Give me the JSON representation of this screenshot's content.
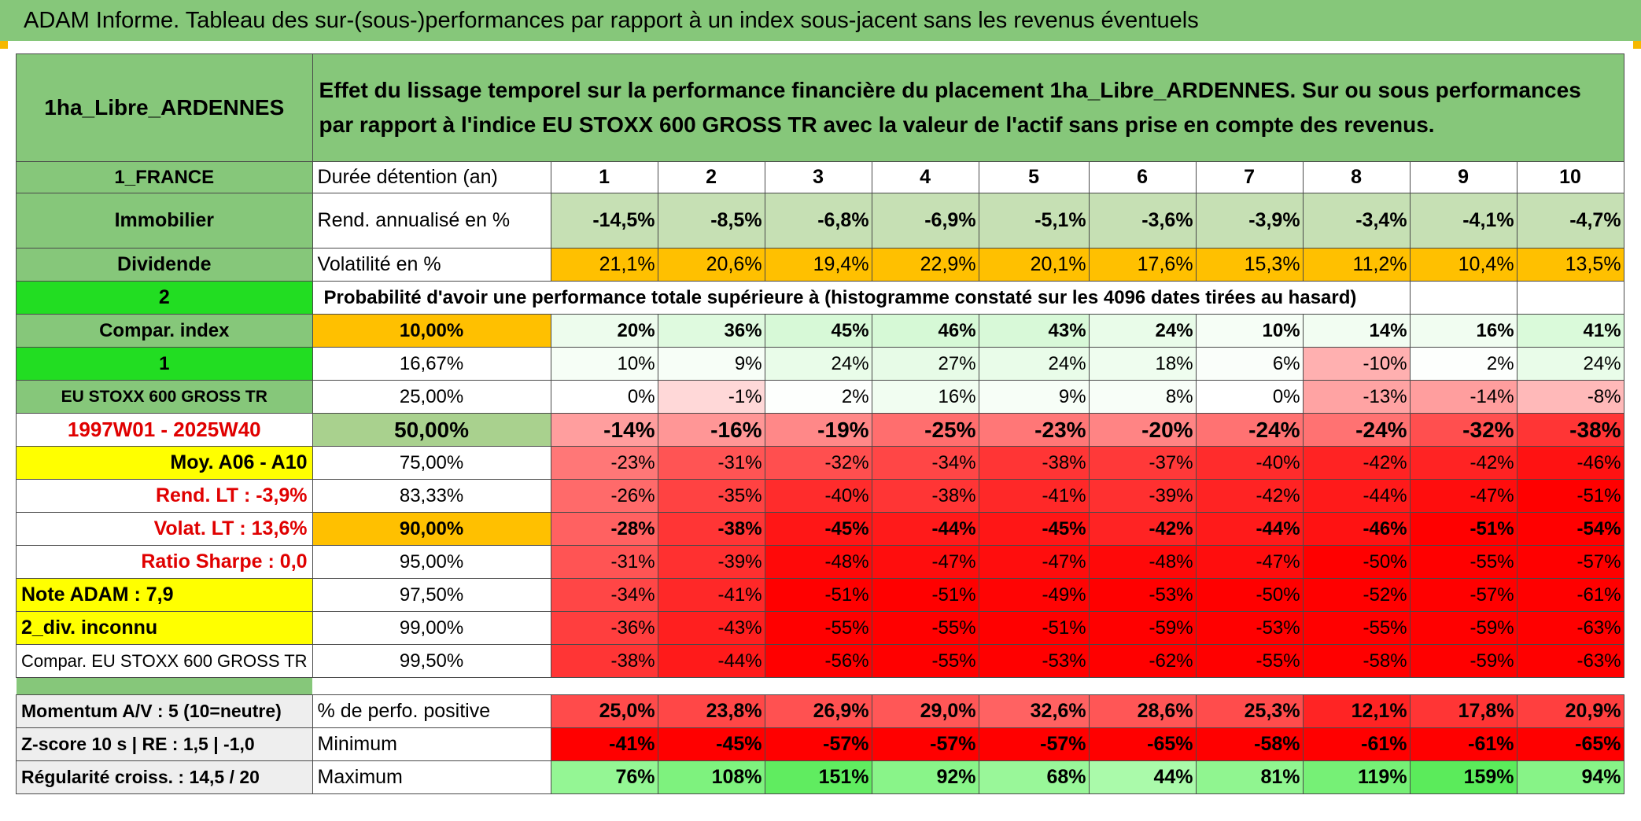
{
  "title": "ADAM Informe. Tableau des sur-(sous-)performances par rapport à un index sous-jacent sans les revenus éventuels",
  "header": {
    "asset_name": "1ha_Libre_ARDENNES",
    "description": "Effet du lissage temporel sur la performance financière du placement 1ha_Libre_ARDENNES. Sur ou sous performances par rapport à l'indice EU STOXX 600 GROSS TR avec la valeur de l'actif sans prise en compte des revenus."
  },
  "sidebar": {
    "country": "1_FRANCE",
    "category": "Immobilier",
    "type": "Dividende",
    "num2": "2",
    "compar_index": "Compar. index",
    "num1": "1",
    "index_name": "EU STOXX 600 GROSS TR",
    "period": "1997W01 - 2025W40",
    "moy": "Moy. A06 - A10",
    "rend_lt": "Rend. LT :    -3,9%",
    "volat_lt": "Volat. LT :    13,6%",
    "sharpe": "Ratio Sharpe :    0,0",
    "note": "Note ADAM : 7,9",
    "div": "2_div. inconnu",
    "compar_full": "Compar. EU STOXX 600 GROSS TR"
  },
  "table": {
    "duration_label": "Durée détention (an)",
    "years": [
      "1",
      "2",
      "3",
      "4",
      "5",
      "6",
      "7",
      "8",
      "9",
      "10"
    ],
    "rend_label": "Rend. annualisé en %",
    "rend": [
      "-14,5%",
      "-8,5%",
      "-6,8%",
      "-6,9%",
      "-5,1%",
      "-3,6%",
      "-3,9%",
      "-3,4%",
      "-4,1%",
      "-4,7%"
    ],
    "vol_label": "Volatilité en %",
    "vol": [
      "21,1%",
      "20,6%",
      "19,4%",
      "22,9%",
      "20,1%",
      "17,6%",
      "15,3%",
      "11,2%",
      "10,4%",
      "13,5%"
    ],
    "prob_label": "Probabilité d'avoir une performance totale supérieure à (histogramme constaté sur les 4096 dates tirées au hasard)",
    "quantiles": [
      {
        "label": "10,00%",
        "values": [
          "20%",
          "36%",
          "45%",
          "46%",
          "43%",
          "24%",
          "10%",
          "14%",
          "16%",
          "41%"
        ]
      },
      {
        "label": "16,67%",
        "values": [
          "10%",
          "9%",
          "24%",
          "27%",
          "24%",
          "18%",
          "6%",
          "-10%",
          "2%",
          "24%"
        ]
      },
      {
        "label": "25,00%",
        "values": [
          "0%",
          "-1%",
          "2%",
          "16%",
          "9%",
          "8%",
          "0%",
          "-13%",
          "-14%",
          "-8%"
        ]
      },
      {
        "label": "50,00%",
        "values": [
          "-14%",
          "-16%",
          "-19%",
          "-25%",
          "-23%",
          "-20%",
          "-24%",
          "-24%",
          "-32%",
          "-38%"
        ]
      },
      {
        "label": "75,00%",
        "values": [
          "-23%",
          "-31%",
          "-32%",
          "-34%",
          "-38%",
          "-37%",
          "-40%",
          "-42%",
          "-42%",
          "-46%"
        ]
      },
      {
        "label": "83,33%",
        "values": [
          "-26%",
          "-35%",
          "-40%",
          "-38%",
          "-41%",
          "-39%",
          "-42%",
          "-44%",
          "-47%",
          "-51%"
        ]
      },
      {
        "label": "90,00%",
        "values": [
          "-28%",
          "-38%",
          "-45%",
          "-44%",
          "-45%",
          "-42%",
          "-44%",
          "-46%",
          "-51%",
          "-54%"
        ]
      },
      {
        "label": "95,00%",
        "values": [
          "-31%",
          "-39%",
          "-48%",
          "-47%",
          "-47%",
          "-48%",
          "-47%",
          "-50%",
          "-55%",
          "-57%"
        ]
      },
      {
        "label": "97,50%",
        "values": [
          "-34%",
          "-41%",
          "-51%",
          "-51%",
          "-49%",
          "-53%",
          "-50%",
          "-52%",
          "-57%",
          "-61%"
        ]
      },
      {
        "label": "99,00%",
        "values": [
          "-36%",
          "-43%",
          "-55%",
          "-55%",
          "-51%",
          "-59%",
          "-53%",
          "-55%",
          "-59%",
          "-63%"
        ]
      },
      {
        "label": "99,50%",
        "values": [
          "-38%",
          "-44%",
          "-56%",
          "-55%",
          "-53%",
          "-62%",
          "-55%",
          "-58%",
          "-59%",
          "-63%"
        ]
      }
    ],
    "bottom": [
      {
        "side": "Momentum A/V : 5 (10=neutre)",
        "label": "% de perfo. positive",
        "values": [
          "25,0%",
          "23,8%",
          "26,9%",
          "29,0%",
          "32,6%",
          "28,6%",
          "25,3%",
          "12,1%",
          "17,8%",
          "20,9%"
        ]
      },
      {
        "side": "Z-score 10 s | RE : 1,5 | -1,0",
        "label": "Minimum",
        "values": [
          "-41%",
          "-45%",
          "-57%",
          "-57%",
          "-57%",
          "-65%",
          "-58%",
          "-61%",
          "-61%",
          "-65%"
        ]
      },
      {
        "side": "Régularité croiss. : 14,5 / 20",
        "label": "Maximum",
        "values": [
          "76%",
          "108%",
          "151%",
          "92%",
          "68%",
          "44%",
          "81%",
          "119%",
          "159%",
          "94%"
        ]
      }
    ]
  },
  "colors": {
    "header_green": "#86c77a",
    "bright_green": "#22dd22",
    "orange": "#ffc000",
    "yellow": "#ffff00",
    "red": "#e00000"
  }
}
